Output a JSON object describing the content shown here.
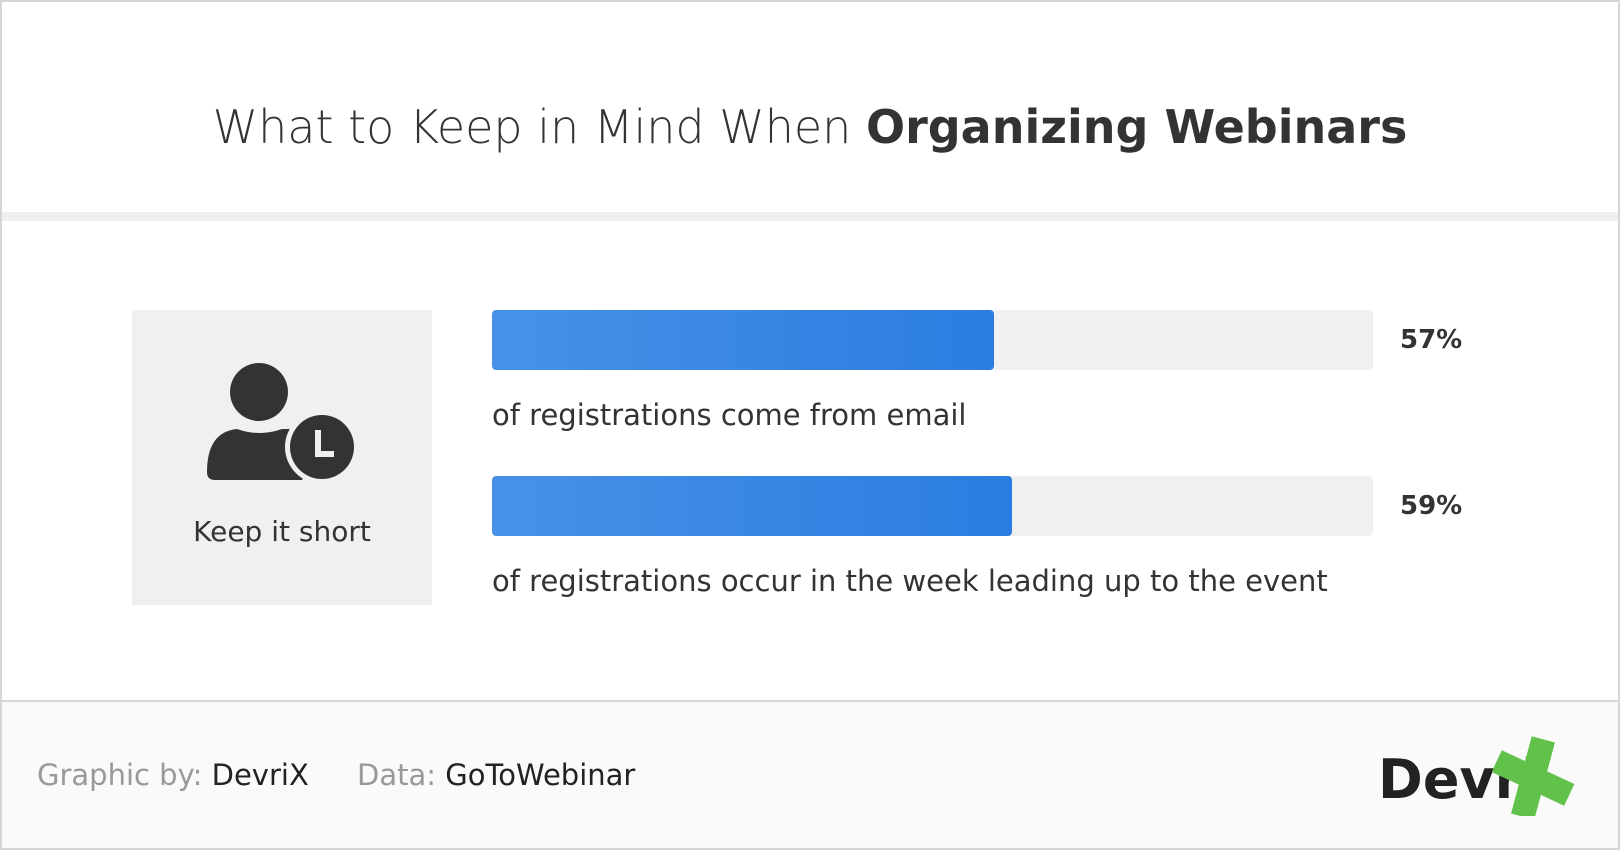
{
  "title": {
    "regular": "What to Keep in Mind When ",
    "bold": "Organizing Webinars"
  },
  "card": {
    "label": "Keep it short",
    "icon": "user-clock-icon"
  },
  "chart_data": {
    "type": "bar",
    "orientation": "horizontal",
    "xlim": [
      0,
      100
    ],
    "categories": [
      "of registrations come from email",
      "of registrations occur in the week leading up to the event"
    ],
    "values": [
      57,
      59
    ],
    "labels": [
      "57%",
      "59%"
    ],
    "colors": {
      "fill": "#2a7de0",
      "track": "#f0f0f0"
    }
  },
  "footer": {
    "graphic_key": "Graphic by:",
    "graphic_val": "DevriX",
    "data_key": "Data:",
    "data_val": "GoToWebinar",
    "logo": "DevriX",
    "logo_colors": {
      "text": "#222222",
      "x": "#62c14a"
    }
  }
}
